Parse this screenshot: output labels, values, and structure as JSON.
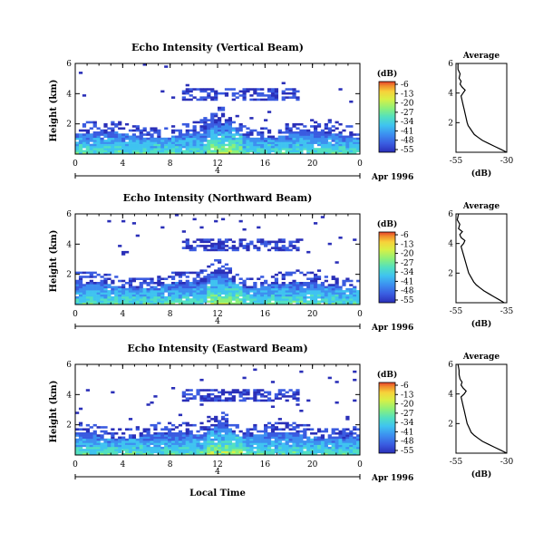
{
  "chart_data": [
    {
      "type": "heatmap",
      "title": "Echo Intensity (Vertical Beam)",
      "ylabel": "Height (km)",
      "xlim": [
        0,
        24
      ],
      "ylim": [
        0,
        6
      ],
      "x_ticks": [
        "0",
        "4",
        "8",
        "12",
        "16",
        "20",
        "0"
      ],
      "y_ticks": [
        "2",
        "4",
        "6"
      ],
      "date_marker": "4",
      "date_label": "Apr 1996",
      "colorbar": {
        "unit": "(dB)",
        "ticks": [
          "-6",
          "-13",
          "-20",
          "-27",
          "-34",
          "-41",
          "-48",
          "-55"
        ]
      },
      "profile": {
        "title": "Average",
        "xlabel": "(dB)",
        "x_ticks": [
          "-55",
          "-30"
        ],
        "y_ticks": [
          "2",
          "4",
          "6"
        ],
        "points": [
          [
            -30,
            0.0
          ],
          [
            -33,
            0.2
          ],
          [
            -36,
            0.4
          ],
          [
            -39,
            0.6
          ],
          [
            -42,
            0.8
          ],
          [
            -44,
            1.0
          ],
          [
            -46,
            1.2
          ],
          [
            -47,
            1.4
          ],
          [
            -48,
            1.6
          ],
          [
            -49,
            1.8
          ],
          [
            -49.5,
            2.0
          ],
          [
            -50,
            2.3
          ],
          [
            -50.5,
            2.6
          ],
          [
            -51,
            2.9
          ],
          [
            -51.5,
            3.2
          ],
          [
            -52,
            3.5
          ],
          [
            -52.5,
            3.8
          ],
          [
            -51.5,
            4.0
          ],
          [
            -50.5,
            4.2
          ],
          [
            -52,
            4.4
          ],
          [
            -53,
            4.6
          ],
          [
            -52.5,
            4.8
          ],
          [
            -53.5,
            5.0
          ],
          [
            -53,
            5.3
          ],
          [
            -54,
            5.6
          ],
          [
            -54,
            6.0
          ]
        ]
      }
    },
    {
      "type": "heatmap",
      "title": "Echo Intensity (Northward Beam)",
      "ylabel": "Height (km)",
      "xlim": [
        0,
        24
      ],
      "ylim": [
        0,
        6
      ],
      "x_ticks": [
        "0",
        "4",
        "8",
        "12",
        "16",
        "20",
        "0"
      ],
      "y_ticks": [
        "2",
        "4",
        "6"
      ],
      "date_marker": "4",
      "date_label": "Apr 1996",
      "colorbar": {
        "unit": "(dB)",
        "ticks": [
          "-6",
          "-13",
          "-20",
          "-27",
          "-34",
          "-41",
          "-48",
          "-55"
        ]
      },
      "profile": {
        "title": "Average",
        "xlabel": "(dB)",
        "x_ticks": [
          "-55",
          "-35"
        ],
        "y_ticks": [
          "2",
          "4",
          "6"
        ],
        "points": [
          [
            -36,
            0.0
          ],
          [
            -38,
            0.2
          ],
          [
            -40,
            0.4
          ],
          [
            -42,
            0.6
          ],
          [
            -44,
            0.8
          ],
          [
            -45.5,
            1.0
          ],
          [
            -47,
            1.2
          ],
          [
            -48,
            1.4
          ],
          [
            -49,
            1.7
          ],
          [
            -50,
            2.0
          ],
          [
            -50.5,
            2.3
          ],
          [
            -51,
            2.6
          ],
          [
            -51.5,
            2.9
          ],
          [
            -52,
            3.2
          ],
          [
            -52.5,
            3.5
          ],
          [
            -53,
            3.8
          ],
          [
            -52,
            4.0
          ],
          [
            -51.5,
            4.2
          ],
          [
            -53,
            4.4
          ],
          [
            -53.5,
            4.6
          ],
          [
            -52.5,
            4.8
          ],
          [
            -54,
            5.0
          ],
          [
            -53.5,
            5.3
          ],
          [
            -54.5,
            5.6
          ],
          [
            -54,
            6.0
          ]
        ]
      }
    },
    {
      "type": "heatmap",
      "title": "Echo Intensity (Eastward Beam)",
      "ylabel": "Height (km)",
      "xlabel": "Local Time",
      "xlim": [
        0,
        24
      ],
      "ylim": [
        0,
        6
      ],
      "x_ticks": [
        "0",
        "4",
        "8",
        "12",
        "16",
        "20",
        "0"
      ],
      "y_ticks": [
        "2",
        "4",
        "6"
      ],
      "date_marker": "4",
      "date_label": "Apr 1996",
      "colorbar": {
        "unit": "(dB)",
        "ticks": [
          "-6",
          "-13",
          "-20",
          "-27",
          "-34",
          "-41",
          "-48",
          "-55"
        ]
      },
      "profile": {
        "title": "Average",
        "xlabel": "(dB)",
        "x_ticks": [
          "-55",
          "-30"
        ],
        "y_ticks": [
          "2",
          "4",
          "6"
        ],
        "points": [
          [
            -30,
            0.0
          ],
          [
            -33,
            0.2
          ],
          [
            -36,
            0.4
          ],
          [
            -39,
            0.6
          ],
          [
            -42,
            0.8
          ],
          [
            -44,
            1.0
          ],
          [
            -46,
            1.2
          ],
          [
            -47.5,
            1.4
          ],
          [
            -48.5,
            1.7
          ],
          [
            -49.5,
            2.0
          ],
          [
            -50,
            2.3
          ],
          [
            -50.5,
            2.6
          ],
          [
            -51,
            2.9
          ],
          [
            -51.5,
            3.2
          ],
          [
            -52,
            3.5
          ],
          [
            -52.5,
            3.8
          ],
          [
            -51,
            4.0
          ],
          [
            -50,
            4.2
          ],
          [
            -51.5,
            4.4
          ],
          [
            -52.5,
            4.6
          ],
          [
            -52,
            4.8
          ],
          [
            -53,
            5.0
          ],
          [
            -53.5,
            5.3
          ],
          [
            -53.5,
            5.6
          ],
          [
            -54,
            6.0
          ]
        ]
      }
    }
  ],
  "colors": {
    "colormap": [
      "#2a2fb8",
      "#3a5be0",
      "#3c8ef0",
      "#3fc3f0",
      "#52e0c0",
      "#8cf07a",
      "#d8f046",
      "#f7d23a",
      "#f08e2c",
      "#e8402a"
    ]
  }
}
